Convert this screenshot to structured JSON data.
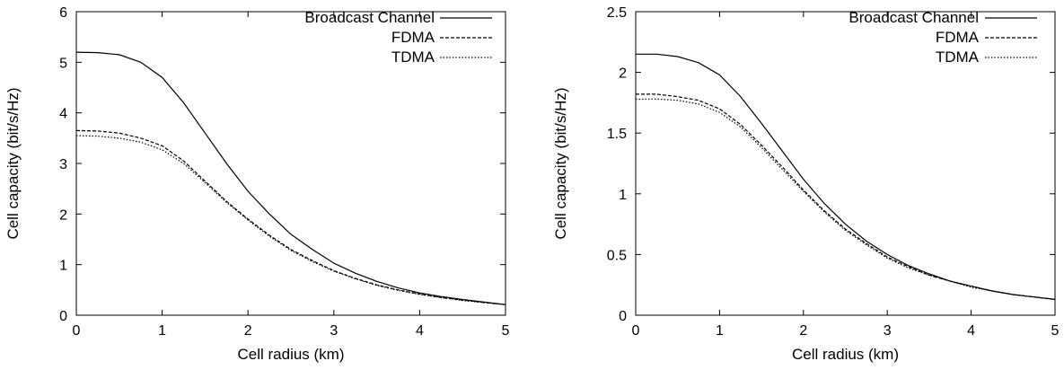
{
  "chart_data": [
    {
      "type": "line",
      "title": "",
      "xlabel": "Cell radius (km)",
      "ylabel": "Cell capacity (bit/s/Hz)",
      "xlim": [
        0,
        5
      ],
      "ylim": [
        0,
        6
      ],
      "xticks": [
        "0",
        "1",
        "2",
        "3",
        "4",
        "5"
      ],
      "yticks": [
        "0",
        "1",
        "2",
        "3",
        "4",
        "5",
        "6"
      ],
      "grid": false,
      "legend_position": "top-right",
      "series": [
        {
          "name": "Broadcast Channel",
          "style": "solid",
          "x": [
            0,
            0.25,
            0.5,
            0.75,
            1.0,
            1.25,
            1.5,
            1.75,
            2.0,
            2.25,
            2.5,
            2.75,
            3.0,
            3.25,
            3.5,
            3.75,
            4.0,
            4.25,
            4.5,
            4.75,
            5.0
          ],
          "y": [
            5.2,
            5.19,
            5.15,
            5.0,
            4.7,
            4.2,
            3.6,
            3.0,
            2.45,
            2.0,
            1.6,
            1.3,
            1.03,
            0.83,
            0.67,
            0.54,
            0.44,
            0.37,
            0.31,
            0.26,
            0.21
          ]
        },
        {
          "name": "FDMA",
          "style": "dashed",
          "x": [
            0,
            0.25,
            0.5,
            0.75,
            1.0,
            1.25,
            1.5,
            1.75,
            2.0,
            2.25,
            2.5,
            2.75,
            3.0,
            3.25,
            3.5,
            3.75,
            4.0,
            4.25,
            4.5,
            4.75,
            5.0
          ],
          "y": [
            3.65,
            3.64,
            3.6,
            3.5,
            3.35,
            3.05,
            2.65,
            2.25,
            1.9,
            1.58,
            1.3,
            1.08,
            0.88,
            0.73,
            0.6,
            0.5,
            0.42,
            0.35,
            0.3,
            0.25,
            0.21
          ]
        },
        {
          "name": "TDMA",
          "style": "dotted",
          "x": [
            0,
            0.25,
            0.5,
            0.75,
            1.0,
            1.25,
            1.5,
            1.75,
            2.0,
            2.25,
            2.5,
            2.75,
            3.0,
            3.25,
            3.5,
            3.75,
            4.0,
            4.25,
            4.5,
            4.75,
            5.0
          ],
          "y": [
            3.55,
            3.54,
            3.5,
            3.42,
            3.27,
            3.0,
            2.62,
            2.23,
            1.88,
            1.56,
            1.28,
            1.06,
            0.87,
            0.72,
            0.59,
            0.49,
            0.41,
            0.35,
            0.29,
            0.25,
            0.21
          ]
        }
      ]
    },
    {
      "type": "line",
      "title": "",
      "xlabel": "Cell radius (km)",
      "ylabel": "Cell capacity (bit/s/Hz)",
      "xlim": [
        0,
        5
      ],
      "ylim": [
        0,
        2.5
      ],
      "xticks": [
        "0",
        "1",
        "2",
        "3",
        "4",
        "5"
      ],
      "yticks": [
        "0",
        "0.5",
        "1",
        "1.5",
        "2",
        "2.5"
      ],
      "grid": false,
      "legend_position": "top-right",
      "series": [
        {
          "name": "Broadcast Channel",
          "style": "solid",
          "x": [
            0,
            0.25,
            0.5,
            0.75,
            1.0,
            1.25,
            1.5,
            1.75,
            2.0,
            2.25,
            2.5,
            2.75,
            3.0,
            3.25,
            3.5,
            3.75,
            4.0,
            4.25,
            4.5,
            4.75,
            5.0
          ],
          "y": [
            2.15,
            2.15,
            2.13,
            2.08,
            1.98,
            1.8,
            1.58,
            1.35,
            1.12,
            0.92,
            0.75,
            0.61,
            0.5,
            0.41,
            0.34,
            0.28,
            0.24,
            0.2,
            0.17,
            0.15,
            0.13
          ]
        },
        {
          "name": "FDMA",
          "style": "dashed",
          "x": [
            0,
            0.25,
            0.5,
            0.75,
            1.0,
            1.25,
            1.5,
            1.75,
            2.0,
            2.25,
            2.5,
            2.75,
            3.0,
            3.25,
            3.5,
            3.75,
            4.0,
            4.25,
            4.5,
            4.75,
            5.0
          ],
          "y": [
            1.82,
            1.82,
            1.8,
            1.77,
            1.7,
            1.57,
            1.4,
            1.22,
            1.03,
            0.86,
            0.71,
            0.59,
            0.48,
            0.4,
            0.33,
            0.28,
            0.24,
            0.2,
            0.17,
            0.15,
            0.13
          ]
        },
        {
          "name": "TDMA",
          "style": "dotted",
          "x": [
            0,
            0.25,
            0.5,
            0.75,
            1.0,
            1.25,
            1.5,
            1.75,
            2.0,
            2.25,
            2.5,
            2.75,
            3.0,
            3.25,
            3.5,
            3.75,
            4.0,
            4.25,
            4.5,
            4.75,
            5.0
          ],
          "y": [
            1.78,
            1.78,
            1.77,
            1.74,
            1.67,
            1.55,
            1.38,
            1.2,
            1.02,
            0.85,
            0.7,
            0.58,
            0.47,
            0.39,
            0.33,
            0.28,
            0.23,
            0.2,
            0.17,
            0.15,
            0.13
          ]
        }
      ]
    }
  ]
}
